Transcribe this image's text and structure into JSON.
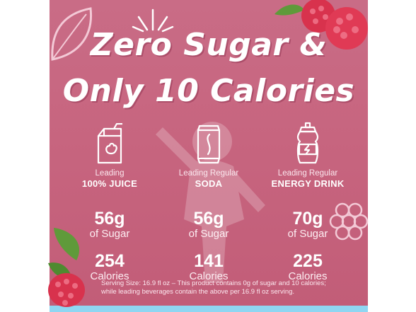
{
  "headline": {
    "line1": "Zero Sugar &",
    "line2": "Only 10 Calories"
  },
  "columns": [
    {
      "icon": "juice-box-icon",
      "label_top": "Leading",
      "label_main": "100% JUICE",
      "sugar_value": "56g",
      "sugar_unit": "of Sugar",
      "calories_value": "254",
      "calories_unit": "Calories"
    },
    {
      "icon": "soda-can-icon",
      "label_top": "Leading Regular",
      "label_main": "SODA",
      "sugar_value": "56g",
      "sugar_unit": "of Sugar",
      "calories_value": "141",
      "calories_unit": "Calories"
    },
    {
      "icon": "sports-bottle-icon",
      "label_top": "Leading Regular",
      "label_main": "ENERGY DRINK",
      "sugar_value": "70g",
      "sugar_unit": "of Sugar",
      "calories_value": "225",
      "calories_unit": "Calories"
    }
  ],
  "footnote": {
    "line1": "Serving Size: 16.9 fl oz – This product contains 0g of sugar and 10 calories;",
    "line2": "while leading beverages contain the above per 16.9 fl oz serving."
  },
  "colors": {
    "panel_pink": "#c7657f",
    "bottom_strip_blue": "#8fd6f2",
    "text_white": "#ffffff",
    "raspberry_red": "#d8324d",
    "leaf_green": "#5f9a3a"
  }
}
